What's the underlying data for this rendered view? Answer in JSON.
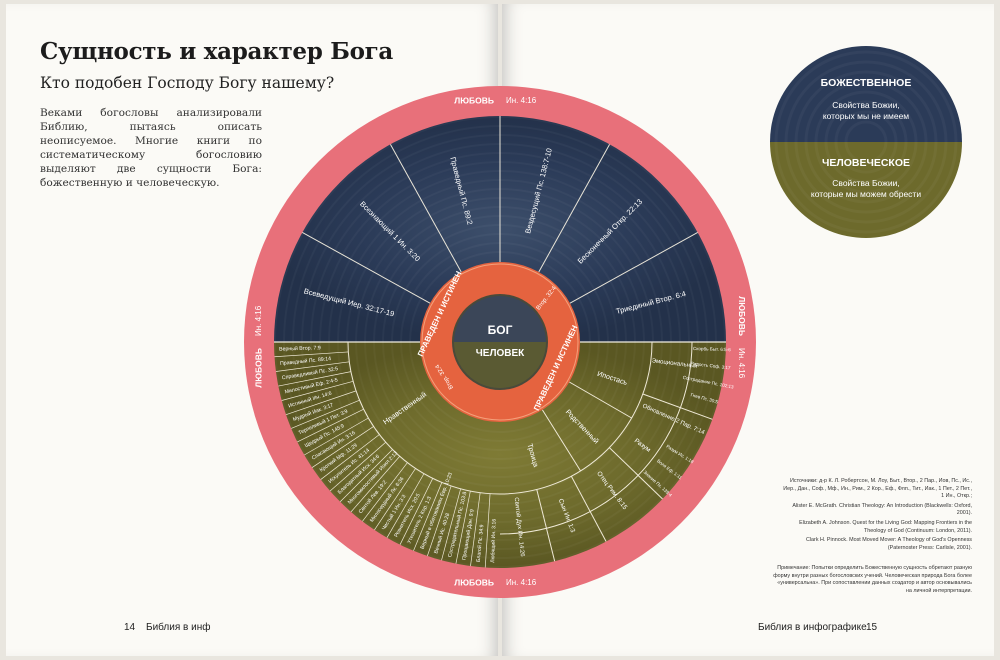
{
  "heading": {
    "title": "Сущность и характер Бога",
    "subtitle": "Кто подобен Господу Богу нашему?"
  },
  "intro": "Веками богословы анализировали Библию, пытаясь описать неописуемое. Многие книги по систематическому богословию выделяют две сущности Бога: божественную и человеческую.",
  "ring": {
    "label": "ЛЮБОВЬ",
    "ref": "Ин. 4:16"
  },
  "inner_ring": {
    "label": "ПРАВЕДЕН И ИСТИНЕН",
    "ref": "Втор. 32:4"
  },
  "center": {
    "top": "БОГ",
    "bottom": "ЧЕЛОВЕК"
  },
  "divine_segments": [
    "Всеведущий Иер. 32:17-19",
    "Всезнающий 1 Ин. 3:20",
    "Праведный Пс. 89:2",
    "Вездесущий Пс. 138:7-10",
    "Бесконечный Откр. 22:13",
    "Триединый Втор. 6:4"
  ],
  "human_left": {
    "category": "Нравственный",
    "items": [
      "Верный Втор. 7:9",
      "Праведный Пс. 89:14",
      "Справедливый Пс. 32:5",
      "Милостивый Еф. 2:4-5",
      "Истинный Ин. 14:6",
      "Мудрый Иак. 3:17",
      "Терпеливый 1 Пет. 3:9",
      "Щедрый Пс. 145:9",
      "Спасающий Ин. 3:16",
      "Кроткий Мф. 11:29",
      "Искупитель Ис. 41:14",
      "Благодатный Исх. 34:6",
      "Многомилостивый Иоил 2:13",
      "Святой Лев. 19:2",
      "Милосердный Лк. 6:36",
      "Чистый 1 Ин. 3:3",
      "Ревнитель Исх. 20:5",
      "Утешитель 2 Кор. 1:3",
      "Верный в обетованиях Евр. 10:23",
      "Вечный Ис. 40:28",
      "Сострадательный Пс. 103:8",
      "Прощающий Дан. 9:9",
      "Благой Пс. 34:9",
      "Любящий Ин. 3:16"
    ]
  },
  "human_right": {
    "categories": [
      "Родственный",
      "Ипостась",
      "Троица"
    ],
    "emotional": {
      "label": "Эмоциональный",
      "items": [
        "Скорбь Быт. 6:5-6",
        "Радость Соф. 3:17",
        "Сострадание Пс. 102:13",
        "Гнев Пс. 30:5"
      ]
    },
    "items": [
      "Обновление 2 Пар. 7:14",
      "Разум",
      "Отец Рим. 8:15",
      "Сын Ин. 1:3",
      "Святой Дух Ин. 14:26"
    ],
    "reason": [
      "Разум Ис. 1:18",
      "Воля Еф. 1:11",
      "Знание Пс. 139:4"
    ]
  },
  "legend": {
    "divine_title": "БОЖЕСТВЕННОЕ",
    "divine_text": "Свойства Божии, которых мы не имеем",
    "human_title": "ЧЕЛОВЕЧЕСКОЕ",
    "human_text": "Свойства Божии, которые мы можем обрести"
  },
  "sources": [
    "Источники: д-р К. Л. Робертсон, М. Лоу, Быт., Втор., 2 Пар., Иов, Пс., Ис., Иер., Дан., Соф., Мф., Ин., Рим., 2 Кор., Еф., Флп., Тит., Иак., 1 Пет., 2 Пет., 1 Ин., Откр.;",
    "Alister E. McGrath. Christian Theology: An Introduction (Blackwells: Oxford, 2001).",
    "Elizabeth A. Johnson. Quest for the Living God: Mapping Frontiers in the Theology of God (Continuum: London, 2011).",
    "Clark H. Pinnock. Most Moved Mover: A Theology of God's Openness (Paternoster Press: Carlisle, 2001)."
  ],
  "note": "Примечание: Попытки определить Божественную сущность обретают разную форму внутри разных богословских учений. Человеческая природа Бога более «универсальна». При сопоставлении данных создатор и автор основывались на личной интерпретации.",
  "footer": {
    "left_page": "14",
    "left_text": "Библия в инф",
    "right_text": "Библия в инфографике",
    "right_page": "15"
  },
  "colors": {
    "outer_ring": "#e8707a",
    "divine": "#2b3b58",
    "human": "#6d6a2c",
    "inner_ring": "#e5633f",
    "center": "#4a4a3a"
  }
}
